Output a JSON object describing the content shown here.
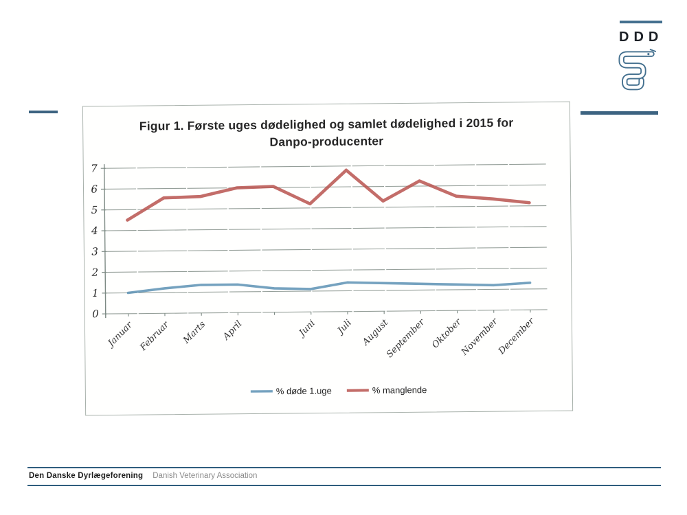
{
  "logo": {
    "text": "DDD",
    "icon": "veterinary-snake-icon",
    "accent_color": "#44708f"
  },
  "scan": {
    "title_line1": "Figur 1. Første uges dødelighed og samlet dødelighed i 2015 for",
    "title_line2": "Danpo-producenter"
  },
  "chart_data": {
    "type": "line",
    "title": "Figur 1. Første uges dødelighed og samlet dødelighed i 2015 for Danpo-producenter",
    "categories": [
      "Januar",
      "Februar",
      "Marts",
      "April",
      "",
      "Juni",
      "Juli",
      "August",
      "September",
      "Oktober",
      "November",
      "December"
    ],
    "series": [
      {
        "name": "% døde 1.uge",
        "color": "#5d92b4",
        "values": [
          1.0,
          1.2,
          1.35,
          1.35,
          1.15,
          1.1,
          1.4,
          1.35,
          1.3,
          1.25,
          1.2,
          1.3
        ]
      },
      {
        "name": "% manglende",
        "color": "#b9534f",
        "values": [
          4.5,
          5.55,
          5.6,
          6.0,
          6.05,
          5.2,
          6.8,
          5.3,
          6.25,
          5.5,
          5.35,
          5.15
        ]
      }
    ],
    "xlabel": "",
    "ylabel": "",
    "ylim": [
      0,
      7
    ],
    "yticks": [
      0,
      1,
      2,
      3,
      4,
      5,
      6,
      7
    ],
    "grid": true,
    "grid_color": "#8f9a93",
    "legend_position": "bottom"
  },
  "footer": {
    "org_name": "Den Danske Dyrlægeforening",
    "org_name_en": "Danish Veterinary Association"
  }
}
